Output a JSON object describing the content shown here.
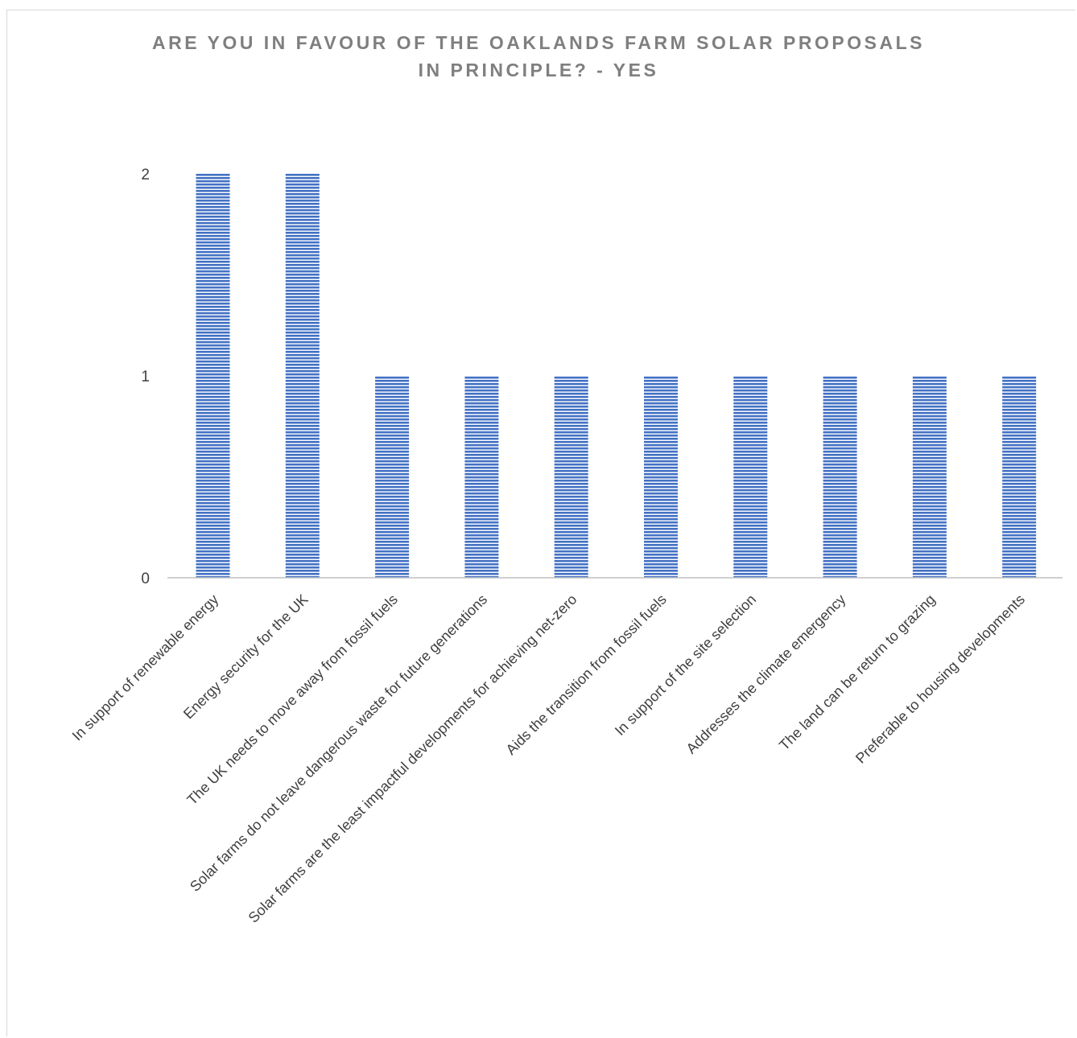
{
  "chart_data": {
    "type": "bar",
    "title": "ARE YOU IN FAVOUR OF THE OAKLANDS FARM SOLAR PROPOSALS",
    "subtitle": "IN PRINCIPLE? - YES",
    "xlabel": "",
    "ylabel": "",
    "categories": [
      "In support of renewable energy",
      "Energy security for the UK",
      "The UK needs to move away from fossil fuels",
      "Solar farms do not leave dangerous waste for future generations",
      "Solar farms are the least impactful developments for achieving net-zero",
      "Aids the transition from fossil fuels",
      "In support of the site selection",
      "Addresses the climate emergency",
      "The land can be return to grazing",
      "Preferable to housing developments"
    ],
    "values": [
      2,
      2,
      1,
      1,
      1,
      1,
      1,
      1,
      1,
      1
    ],
    "ylim": [
      0,
      2
    ],
    "yticks": [
      "0",
      "1",
      "2"
    ],
    "grid": false,
    "legend": "none",
    "bar_color": "#4472c4",
    "bar_pattern": "horizontal-stripes"
  }
}
